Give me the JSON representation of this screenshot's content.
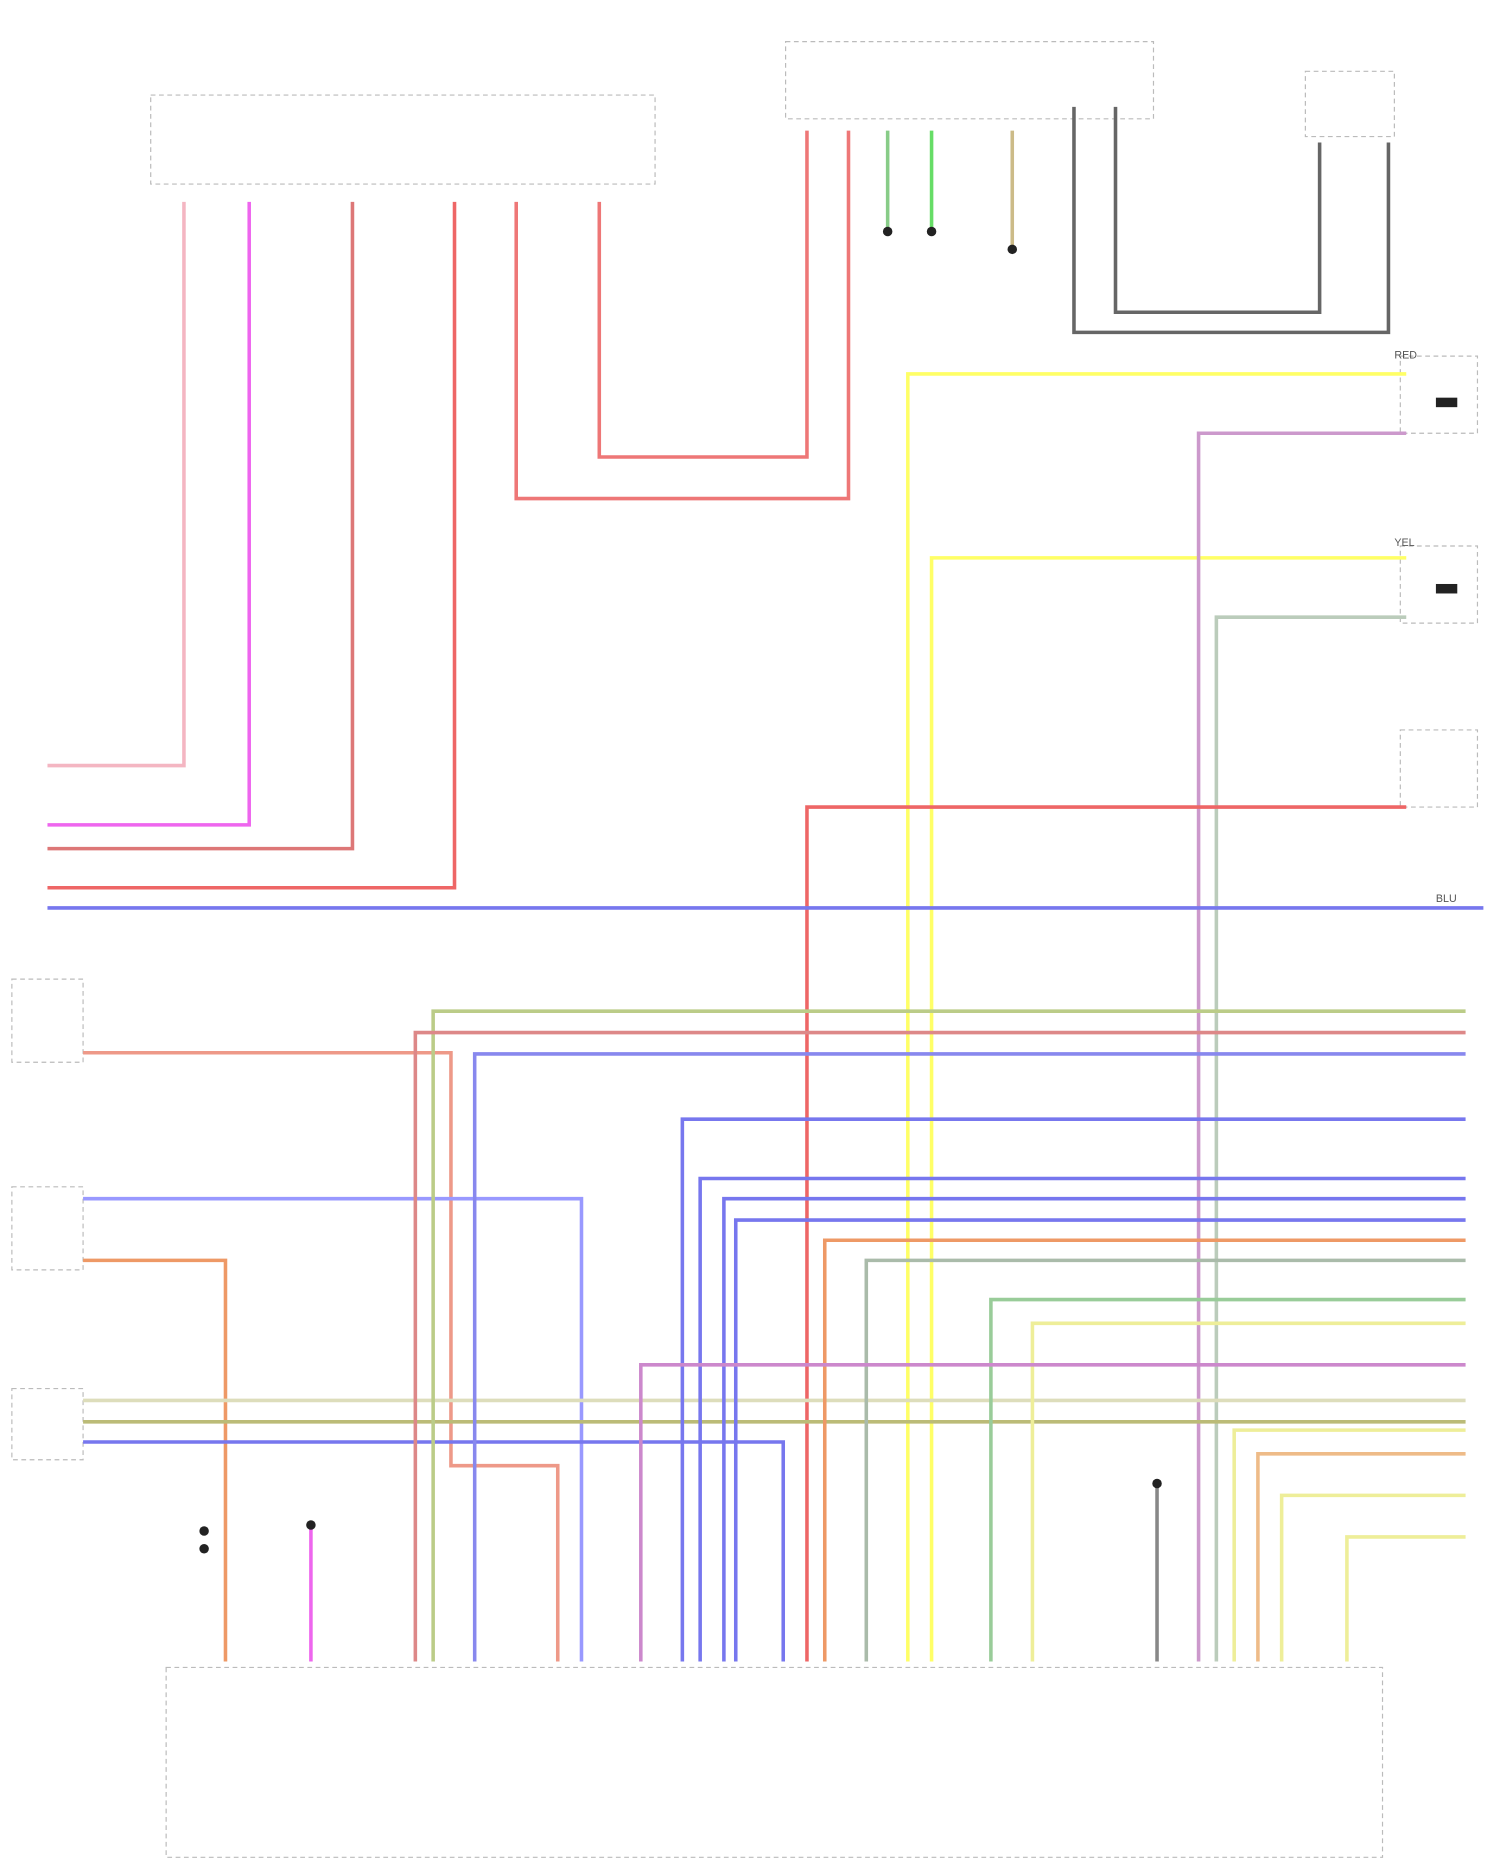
{
  "labels": [
    {
      "text": "RED"
    },
    {
      "text": "YEL"
    },
    {
      "text": "BLU"
    }
  ]
}
